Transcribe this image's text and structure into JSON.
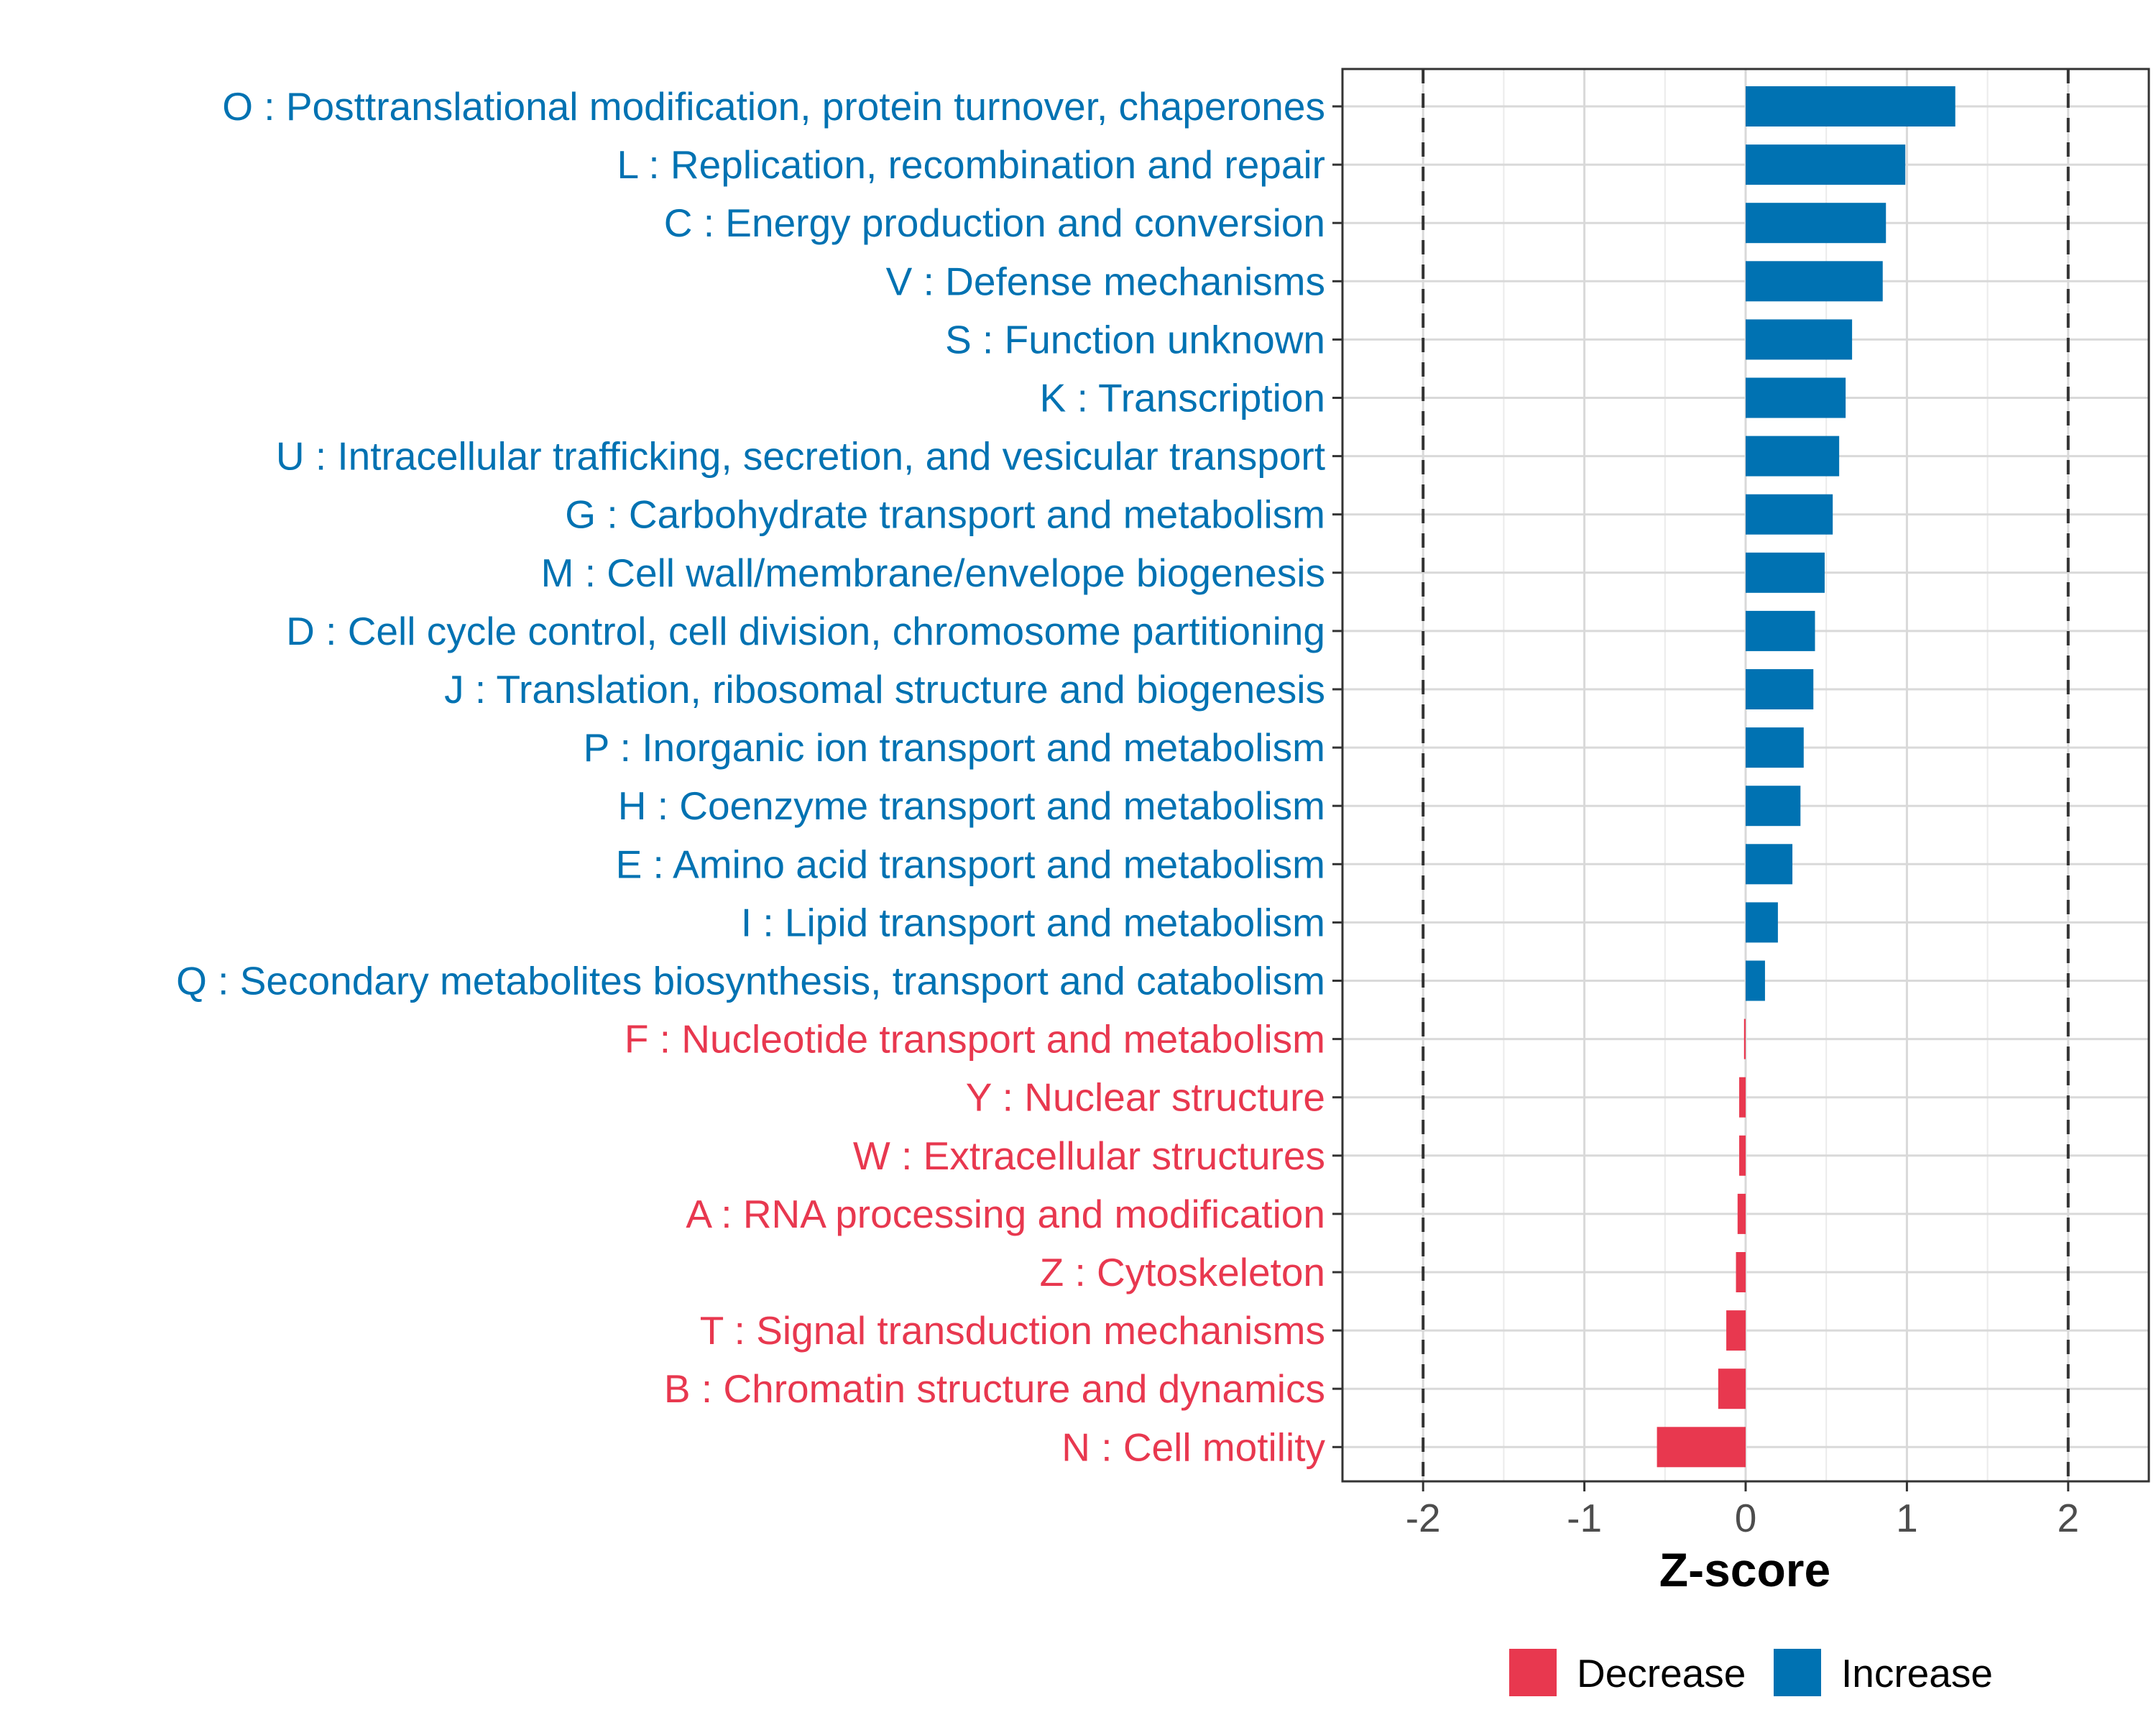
{
  "chart_data": {
    "type": "bar",
    "orientation": "horizontal",
    "title": "",
    "xlabel": "Z-score",
    "ylabel": "",
    "xlim": [
      -2.5,
      2.5
    ],
    "xticks": [
      -2,
      -1,
      0,
      1,
      2
    ],
    "xtick_labels": [
      "-2",
      "-1",
      "0",
      "1",
      "2"
    ],
    "reference_lines": [
      -2,
      2
    ],
    "grid": true,
    "colors": {
      "Increase": "#0072B2",
      "Decrease": "#E8384F"
    },
    "categories": [
      "O : Posttranslational modification, protein turnover, chaperones",
      "L : Replication, recombination and repair",
      "C : Energy production and conversion",
      "V : Defense mechanisms",
      "S : Function unknown",
      "K : Transcription",
      "U : Intracellular trafficking, secretion, and vesicular transport",
      "G : Carbohydrate transport and metabolism",
      "M : Cell wall/membrane/envelope biogenesis",
      "D : Cell cycle control, cell division, chromosome partitioning",
      "J : Translation, ribosomal structure and biogenesis",
      "P : Inorganic ion transport and metabolism",
      "H : Coenzyme transport and metabolism",
      "E : Amino acid transport and metabolism",
      "I : Lipid transport and metabolism",
      "Q : Secondary metabolites biosynthesis, transport and catabolism",
      "F : Nucleotide transport and metabolism",
      "Y : Nuclear structure",
      "W : Extracellular structures",
      "A : RNA processing and modification",
      "Z : Cytoskeleton",
      "T : Signal transduction mechanisms",
      "B : Chromatin structure and dynamics",
      "N : Cell motility"
    ],
    "values": [
      1.3,
      0.99,
      0.87,
      0.85,
      0.66,
      0.62,
      0.58,
      0.54,
      0.49,
      0.43,
      0.42,
      0.36,
      0.34,
      0.29,
      0.2,
      0.12,
      -0.01,
      -0.04,
      -0.04,
      -0.05,
      -0.06,
      -0.12,
      -0.17,
      -0.55
    ],
    "groups": [
      "Increase",
      "Increase",
      "Increase",
      "Increase",
      "Increase",
      "Increase",
      "Increase",
      "Increase",
      "Increase",
      "Increase",
      "Increase",
      "Increase",
      "Increase",
      "Increase",
      "Increase",
      "Increase",
      "Decrease",
      "Decrease",
      "Decrease",
      "Decrease",
      "Decrease",
      "Decrease",
      "Decrease",
      "Decrease"
    ],
    "legend": {
      "position": "bottom",
      "entries": [
        "Decrease",
        "Increase"
      ]
    }
  }
}
